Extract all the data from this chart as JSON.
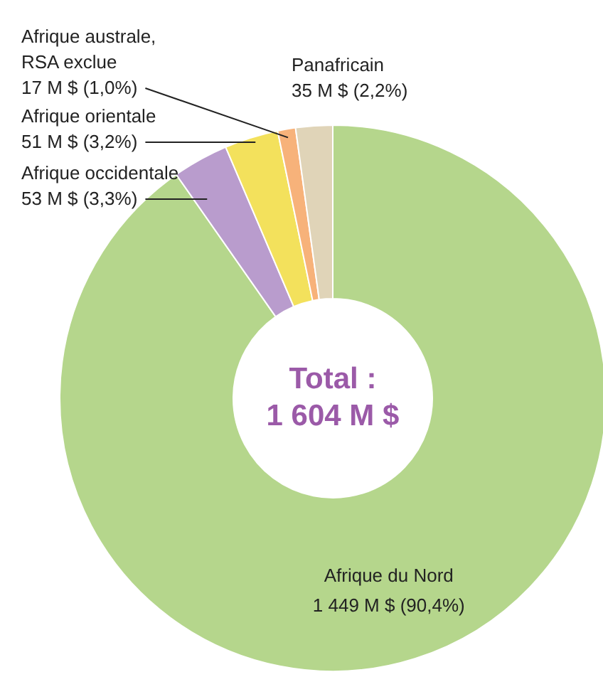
{
  "chart_data": {
    "type": "donut",
    "categories": [
      "Afrique du Nord",
      "Afrique occidentale",
      "Afrique orientale",
      "Afrique australe, RSA exclue",
      "Panafricain"
    ],
    "values": [
      1449,
      53,
      51,
      17,
      35
    ],
    "value_labels": [
      "1 449 M $ (90,4%)",
      "53 M $ (3,3%)",
      "51 M $ (3,2%)",
      "17 M $ (1,0%)",
      "35 M $ (2,2%)"
    ],
    "colors": [
      "#b5d68c",
      "#b99ccd",
      "#f3e15c",
      "#f7b27a",
      "#e0d4b8"
    ],
    "annotations": [
      "Total :",
      "1 604 M $"
    ]
  }
}
